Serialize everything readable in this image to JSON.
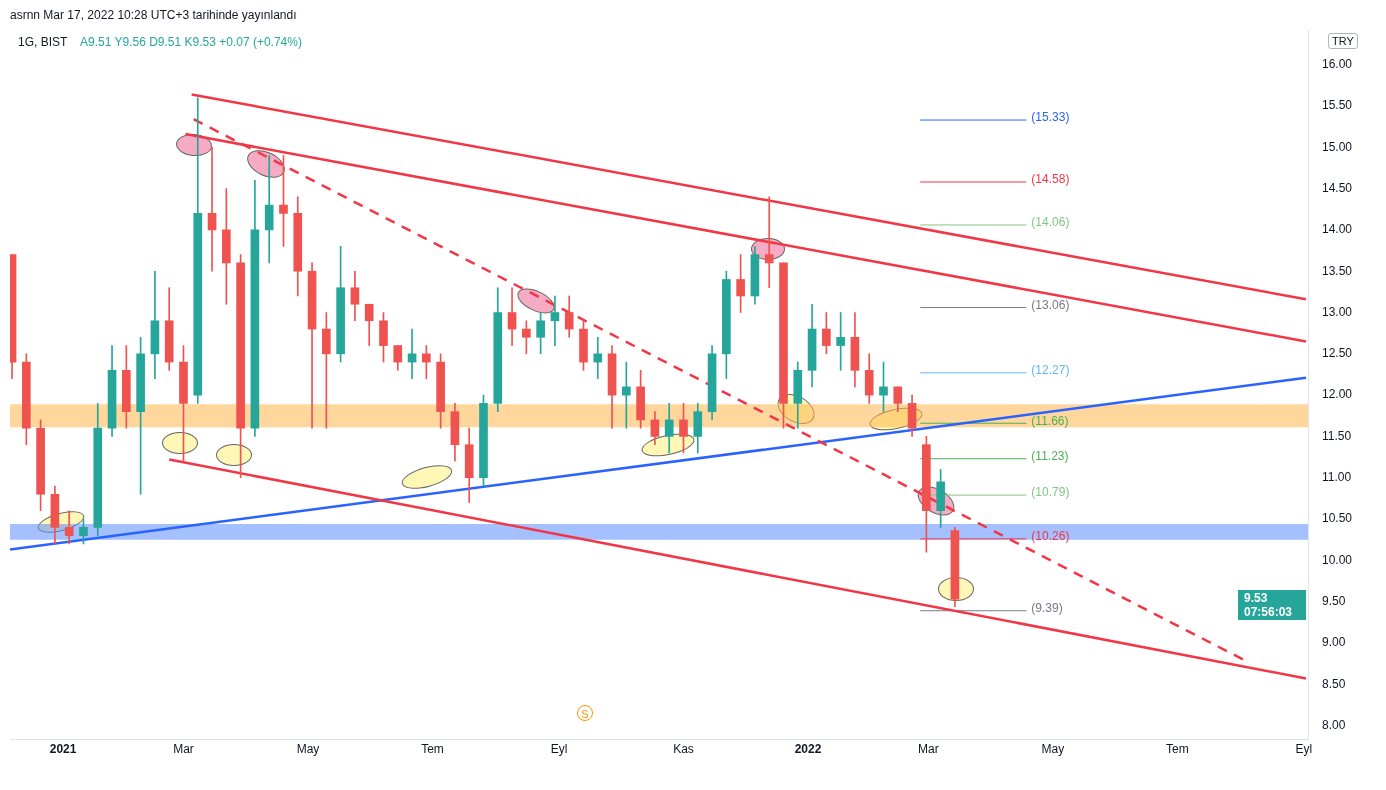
{
  "chart_data": {
    "type": "candlestick",
    "title": "1G, BIST",
    "subtitle": "A9.51 Y9.56 D9.51 K9.53 +0.07 (+0.74%)",
    "xlim": [
      "2020-12-06",
      "2022-09-03"
    ],
    "xticks": [
      {
        "value": "2021-01-01",
        "label": "2021"
      },
      {
        "value": "2021-03-01",
        "label": "Mar"
      },
      {
        "value": "2021-05-01",
        "label": "May"
      },
      {
        "value": "2021-07-01",
        "label": "Tem"
      },
      {
        "value": "2021-09-01",
        "label": "Eyl"
      },
      {
        "value": "2021-11-01",
        "label": "Kas"
      },
      {
        "value": "2022-01-01",
        "label": "2022"
      },
      {
        "value": "2022-03-01",
        "label": "Mar"
      },
      {
        "value": "2022-05-01",
        "label": "May"
      },
      {
        "value": "2022-07-01",
        "label": "Tem"
      },
      {
        "value": "2022-09-01",
        "label": "Eyl"
      }
    ],
    "ylim": [
      7.83,
      16.42
    ],
    "yticks": [
      {
        "value": 8,
        "label": "8.00"
      },
      {
        "value": 8.5,
        "label": "8.50"
      },
      {
        "value": 9,
        "label": "9.00"
      },
      {
        "value": 9.5,
        "label": "9.50"
      },
      {
        "value": 10,
        "label": "10.00"
      },
      {
        "value": 10.5,
        "label": "10.50"
      },
      {
        "value": 11,
        "label": "11.00"
      },
      {
        "value": 11.5,
        "label": "11.50"
      },
      {
        "value": 12,
        "label": "12.00"
      },
      {
        "value": 12.5,
        "label": "12.50"
      },
      {
        "value": 13,
        "label": "13.00"
      },
      {
        "value": 13.5,
        "label": "13.50"
      },
      {
        "value": 14,
        "label": "14.00"
      },
      {
        "value": 14.5,
        "label": "14.50"
      },
      {
        "value": 15,
        "label": "15.00"
      },
      {
        "value": 15.5,
        "label": "15.50"
      },
      {
        "value": 16,
        "label": "16.00"
      }
    ],
    "series": [
      {
        "type": "line",
        "color": "#f23645",
        "x": [
          "2021-03-05",
          "2022-09-02"
        ],
        "values": [
          15.64,
          13.16
        ]
      },
      {
        "type": "line",
        "color": "#f23645",
        "x": [
          "2021-03-02",
          "2022-09-02"
        ],
        "values": [
          15.16,
          12.65
        ]
      },
      {
        "type": "line",
        "color": "#f23645",
        "x": [
          "2021-02-22",
          "2022-09-02"
        ],
        "values": [
          11.22,
          8.57
        ]
      },
      {
        "type": "line",
        "color": "#f23645",
        "x": [
          "2021-03-06",
          "2022-08-03"
        ],
        "values": [
          15.34,
          8.79
        ],
        "line_style": "dashed"
      },
      {
        "type": "line",
        "color": "#2962ff",
        "x": [
          "2020-12-06",
          "2022-09-02"
        ],
        "values": [
          10.13,
          12.21
        ]
      },
      {
        "type": "line",
        "color": "#2962ff",
        "x": [
          "2022-02-25",
          "2022-04-18"
        ],
        "values": [
          15.33,
          15.33
        ]
      },
      {
        "type": "line",
        "color": "#f23645",
        "x": [
          "2022-02-25",
          "2022-04-18"
        ],
        "values": [
          14.58,
          14.58
        ]
      },
      {
        "type": "line",
        "color": "#81c784",
        "x": [
          "2022-02-25",
          "2022-04-18"
        ],
        "values": [
          14.06,
          14.06
        ]
      },
      {
        "type": "line",
        "color": "#787b86",
        "x": [
          "2022-02-25",
          "2022-04-18"
        ],
        "values": [
          13.06,
          13.06
        ]
      },
      {
        "type": "line",
        "color": "#64b5f6",
        "x": [
          "2022-02-25",
          "2022-04-18"
        ],
        "values": [
          12.27,
          12.27
        ]
      },
      {
        "type": "line",
        "color": "#4caf50",
        "x": [
          "2022-02-25",
          "2022-04-18"
        ],
        "values": [
          11.66,
          11.66
        ]
      },
      {
        "type": "line",
        "color": "#4caf50",
        "x": [
          "2022-02-25",
          "2022-04-18"
        ],
        "values": [
          11.23,
          11.23
        ]
      },
      {
        "type": "line",
        "color": "#81c784",
        "x": [
          "2022-02-25",
          "2022-04-18"
        ],
        "values": [
          10.79,
          10.79
        ]
      },
      {
        "type": "line",
        "color": "#f23645",
        "x": [
          "2022-02-25",
          "2022-04-18"
        ],
        "values": [
          10.26,
          10.26
        ]
      },
      {
        "type": "line",
        "color": "#787b86",
        "x": [
          "2022-02-25",
          "2022-04-18"
        ],
        "values": [
          9.39,
          9.39
        ]
      },
      {
        "color": "#26a69a",
        "x": [
          "2021-01-11",
          "2021-01-18",
          "2021-01-25",
          "2021-02-08",
          "2021-02-15",
          "2021-03-08",
          "2021-04-05",
          "2021-04-12",
          "2021-05-17",
          "2021-06-21",
          "2021-07-26",
          "2021-08-02",
          "2021-08-23",
          "2021-08-30",
          "2021-09-20",
          "2021-10-04",
          "2021-10-25",
          "2021-11-08",
          "2021-11-15",
          "2021-11-22",
          "2021-12-06",
          "2021-12-27",
          "2022-01-03",
          "2022-01-17",
          "2022-02-07",
          "2022-03-07"
        ],
        "ohlc": [
          [
            10.3,
            10.5,
            10.2,
            10.4
          ],
          [
            10.4,
            11.9,
            10.3,
            11.6
          ],
          [
            11.6,
            12.6,
            11.5,
            12.3
          ],
          [
            11.8,
            12.7,
            10.8,
            12.5
          ],
          [
            12.5,
            13.5,
            12.2,
            12.9
          ],
          [
            12.0,
            15.6,
            11.9,
            14.2
          ],
          [
            11.6,
            14.6,
            11.5,
            14.0
          ],
          [
            14.0,
            14.9,
            13.6,
            14.3
          ],
          [
            12.5,
            13.8,
            12.4,
            13.3
          ],
          [
            12.4,
            12.8,
            12.2,
            12.5
          ],
          [
            11.0,
            12.0,
            10.9,
            11.9
          ],
          [
            11.9,
            13.3,
            11.8,
            13.0
          ],
          [
            12.7,
            13.0,
            12.5,
            12.9
          ],
          [
            12.9,
            13.2,
            12.6,
            13.0
          ],
          [
            12.4,
            12.7,
            12.2,
            12.5
          ],
          [
            12.0,
            12.4,
            11.6,
            12.1
          ],
          [
            11.5,
            11.9,
            11.3,
            11.7
          ],
          [
            11.5,
            11.9,
            11.3,
            11.8
          ],
          [
            11.8,
            12.6,
            11.7,
            12.5
          ],
          [
            12.5,
            13.5,
            12.2,
            13.4
          ],
          [
            13.2,
            13.8,
            13.1,
            13.7
          ],
          [
            11.9,
            12.4,
            11.6,
            12.3
          ],
          [
            12.3,
            13.1,
            12.1,
            12.8
          ],
          [
            12.6,
            13.0,
            12.3,
            12.7
          ],
          [
            12.0,
            12.4,
            11.8,
            12.1
          ],
          [
            10.6,
            11.1,
            10.4,
            10.95
          ]
        ]
      },
      {
        "color": "#ef5350",
        "x": [
          "2020-12-07",
          "2020-12-14",
          "2020-12-21",
          "2020-12-28",
          "2021-01-04",
          "2021-02-01",
          "2021-02-22",
          "2021-03-01",
          "2021-03-15",
          "2021-03-22",
          "2021-03-29",
          "2021-04-19",
          "2021-04-26",
          "2021-05-03",
          "2021-05-10",
          "2021-05-24",
          "2021-05-31",
          "2021-06-07",
          "2021-06-14",
          "2021-06-28",
          "2021-07-05",
          "2021-07-12",
          "2021-07-19",
          "2021-08-09",
          "2021-08-16",
          "2021-09-06",
          "2021-09-13",
          "2021-09-27",
          "2021-10-11",
          "2021-10-18",
          "2021-11-01",
          "2021-11-29",
          "2021-12-13",
          "2021-12-20",
          "2022-01-10",
          "2022-01-24",
          "2022-01-31",
          "2022-02-14",
          "2022-02-21",
          "2022-02-28",
          "2022-03-14"
        ],
        "ohlc": [
          [
            13.7,
            13.7,
            12.2,
            12.4
          ],
          [
            12.4,
            12.5,
            11.4,
            11.6
          ],
          [
            11.6,
            11.7,
            10.6,
            10.8
          ],
          [
            10.8,
            10.9,
            10.2,
            10.4
          ],
          [
            10.4,
            10.6,
            10.2,
            10.3
          ],
          [
            12.3,
            12.6,
            11.6,
            11.8
          ],
          [
            12.9,
            13.3,
            12.3,
            12.4
          ],
          [
            12.4,
            12.6,
            11.2,
            11.9
          ],
          [
            14.2,
            15.0,
            13.5,
            14.0
          ],
          [
            14.0,
            14.5,
            13.1,
            13.6
          ],
          [
            13.6,
            13.7,
            11.0,
            11.6
          ],
          [
            14.3,
            14.9,
            13.8,
            14.2
          ],
          [
            14.2,
            14.4,
            13.2,
            13.5
          ],
          [
            13.5,
            13.6,
            11.6,
            12.8
          ],
          [
            12.8,
            13.0,
            11.6,
            12.5
          ],
          [
            13.3,
            13.5,
            12.9,
            13.1
          ],
          [
            13.1,
            13.1,
            12.6,
            12.9
          ],
          [
            12.9,
            13.0,
            12.4,
            12.6
          ],
          [
            12.6,
            12.6,
            12.3,
            12.4
          ],
          [
            12.5,
            12.6,
            12.2,
            12.4
          ],
          [
            12.4,
            12.5,
            11.6,
            11.8
          ],
          [
            11.8,
            11.9,
            11.2,
            11.4
          ],
          [
            11.4,
            11.6,
            10.7,
            11.0
          ],
          [
            13.0,
            13.3,
            12.6,
            12.8
          ],
          [
            12.8,
            12.9,
            12.5,
            12.7
          ],
          [
            13.0,
            13.2,
            12.7,
            12.8
          ],
          [
            12.8,
            12.9,
            12.3,
            12.4
          ],
          [
            12.5,
            12.6,
            11.6,
            12.0
          ],
          [
            12.1,
            12.3,
            11.6,
            11.7
          ],
          [
            11.7,
            11.8,
            11.4,
            11.5
          ],
          [
            11.7,
            11.9,
            11.3,
            11.5
          ],
          [
            13.4,
            13.7,
            13.0,
            13.2
          ],
          [
            13.7,
            14.4,
            13.3,
            13.6
          ],
          [
            13.6,
            13.6,
            11.6,
            11.9
          ],
          [
            12.8,
            13.0,
            12.5,
            12.6
          ],
          [
            12.7,
            13.0,
            12.1,
            12.3
          ],
          [
            12.3,
            12.5,
            11.9,
            12.0
          ],
          [
            12.1,
            12.1,
            11.8,
            11.9
          ],
          [
            11.9,
            12.0,
            11.5,
            11.6
          ],
          [
            11.4,
            11.5,
            10.1,
            10.6
          ],
          [
            10.36,
            10.4,
            9.44,
            9.53
          ]
        ]
      }
    ],
    "bands": [
      {
        "axis": "y",
        "from": 11.61,
        "to": 11.89,
        "color": "#ffb74d"
      },
      {
        "axis": "y",
        "from": 10.25,
        "to": 10.44,
        "color": "#5b8cff"
      }
    ],
    "annotations": [
      "asrnn Mar 17, 2022 10:28 UTC+3 tarihinde yayınlandı",
      "TRY",
      {
        "text": "(15.33)",
        "x": "2022-04-18",
        "y": 15.33
      },
      {
        "text": "(14.58)",
        "x": "2022-04-18",
        "y": 14.58
      },
      {
        "text": "(14.06)",
        "x": "2022-04-18",
        "y": 14.06
      },
      {
        "text": "(13.06)",
        "x": "2022-04-18",
        "y": 13.06
      },
      {
        "text": "(12.27)",
        "x": "2022-04-18",
        "y": 12.27
      },
      {
        "text": "(11.66)",
        "x": "2022-04-18",
        "y": 11.66
      },
      {
        "text": "(11.23)",
        "x": "2022-04-18",
        "y": 11.23
      },
      {
        "text": "(10.79)",
        "x": "2022-04-18",
        "y": 10.79
      },
      {
        "text": "(10.26)",
        "x": "2022-04-18",
        "y": 10.26
      },
      {
        "text": "(9.39)",
        "x": "2022-04-18",
        "y": 9.39
      },
      "9.53",
      "07:56:03",
      "S"
    ]
  }
}
